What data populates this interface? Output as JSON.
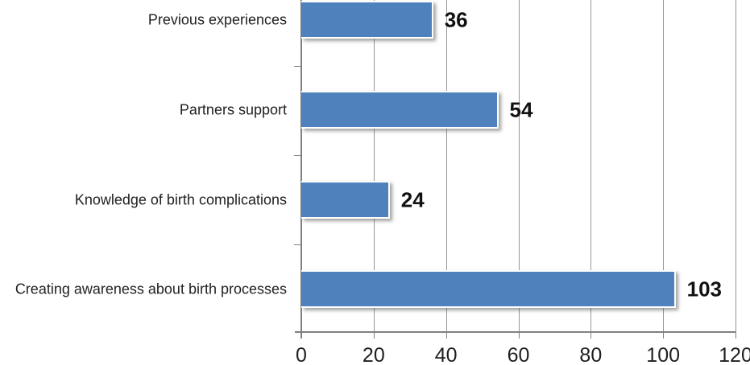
{
  "chart_data": {
    "type": "bar",
    "orientation": "horizontal",
    "title": "",
    "xlabel": "",
    "ylabel": "",
    "categories": [
      "Previous experiences",
      "Partners support",
      "Knowledge of birth complications",
      "Creating awareness about birth processes"
    ],
    "values": [
      36,
      54,
      24,
      103
    ],
    "data_labels": [
      "36",
      "54",
      "24",
      "103"
    ],
    "x_ticks": [
      0,
      20,
      40,
      60,
      80,
      100,
      120
    ],
    "x_tick_labels": [
      "0",
      "20",
      "40",
      "60",
      "80",
      "100",
      "120"
    ],
    "xlim": [
      0,
      120
    ],
    "grid": "vertical-gridlines-on",
    "legend": "none",
    "colors": {
      "bar_fill": "#4F81BD",
      "bar_border": "#FFFFFF",
      "gridline": "#969696",
      "axis_line": "#808080",
      "tick_label": "#1F1F1F",
      "data_label": "#111111",
      "background": "#FFFFFF"
    }
  }
}
